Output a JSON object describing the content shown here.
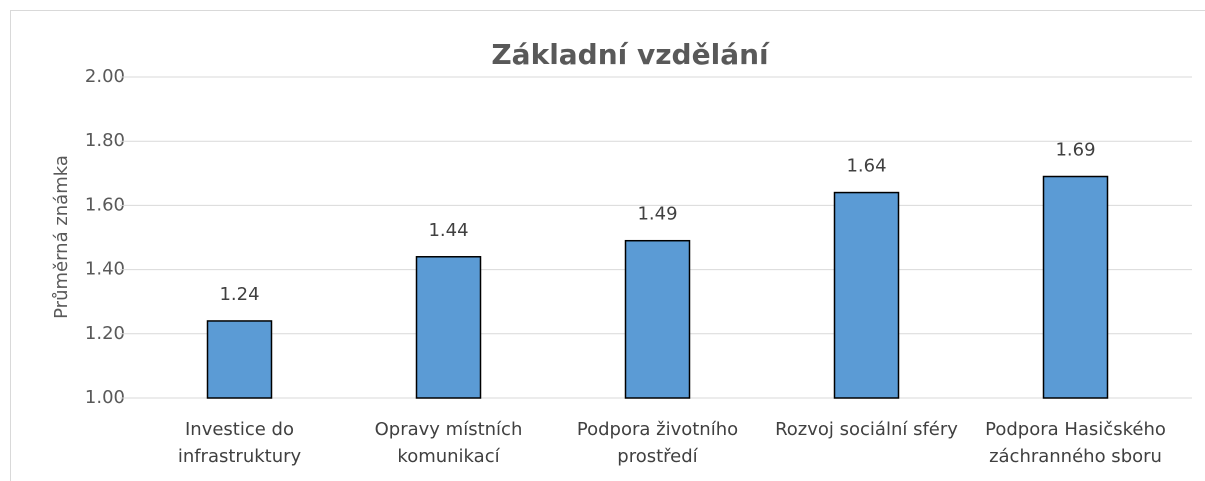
{
  "chart_data": {
    "type": "bar",
    "title": "Základní vzdělání",
    "y_label": "Průměrná známka",
    "categories": [
      "Investice do infrastruktury",
      "Opravy místních komunikací",
      "Podpora životního prostředí",
      "Rozvoj sociální sféry",
      "Podpora Hasičského záchranného sboru"
    ],
    "values": [
      1.24,
      1.44,
      1.49,
      1.64,
      1.69
    ],
    "color": "#5b9bd5",
    "ylim": [
      1.0,
      2.0
    ],
    "yticks": [
      {
        "value": 1.0,
        "label": "1.00"
      },
      {
        "value": 1.2,
        "label": "1.20"
      },
      {
        "value": 1.4,
        "label": "1.40"
      },
      {
        "value": 1.6,
        "label": "1.60"
      },
      {
        "value": 1.8,
        "label": "1.80"
      },
      {
        "value": 2.0,
        "label": "2.00"
      }
    ],
    "grid": true
  }
}
